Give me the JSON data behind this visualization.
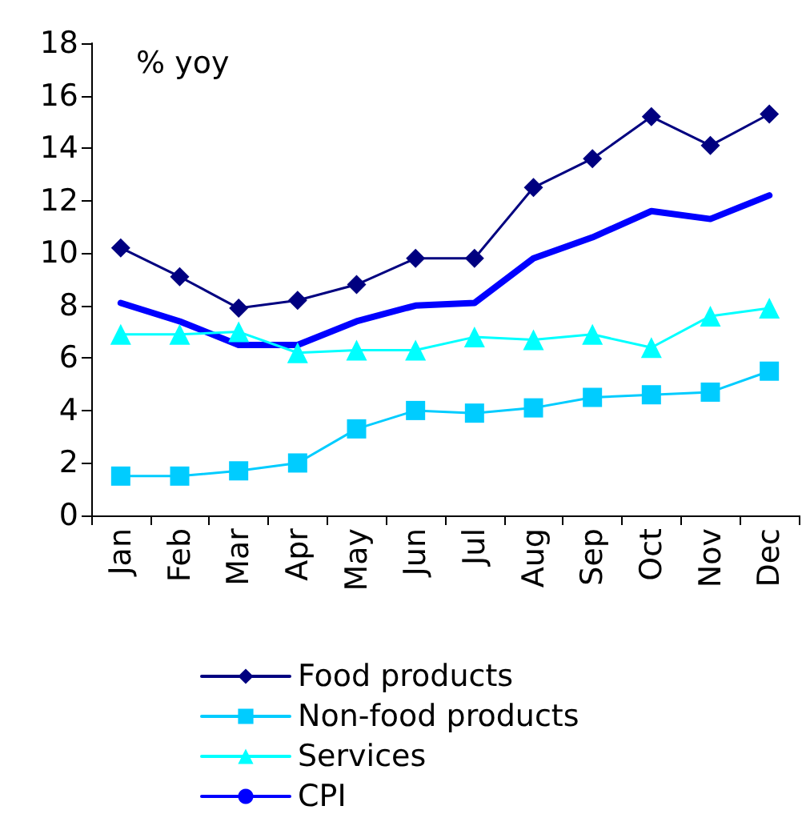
{
  "chart_data": {
    "type": "line",
    "ylabel": "% yoy",
    "categories": [
      "Jan",
      "Feb",
      "Mar",
      "Apr",
      "May",
      "Jun",
      "Jul",
      "Aug",
      "Sep",
      "Oct",
      "Nov",
      "Dec"
    ],
    "series": [
      {
        "name": "Food products",
        "color": "#000080",
        "marker": "diamond",
        "values": [
          10.2,
          9.1,
          7.9,
          8.2,
          8.8,
          9.8,
          9.8,
          12.5,
          13.6,
          15.2,
          14.1,
          15.3
        ]
      },
      {
        "name": "Non-food products",
        "color": "#00ccff",
        "marker": "square",
        "values": [
          1.5,
          1.5,
          1.7,
          2.0,
          3.3,
          4.0,
          3.9,
          4.1,
          4.5,
          4.6,
          4.7,
          5.5
        ]
      },
      {
        "name": "Services",
        "color": "#00ffff",
        "marker": "triangle",
        "values": [
          6.9,
          6.9,
          7.0,
          6.2,
          6.3,
          6.3,
          6.8,
          6.7,
          6.9,
          6.4,
          7.6,
          7.9
        ]
      },
      {
        "name": "CPI",
        "color": "#0000ff",
        "marker": "none",
        "values": [
          8.1,
          7.4,
          6.5,
          6.5,
          7.4,
          8.0,
          8.1,
          9.8,
          10.6,
          11.6,
          11.3,
          12.2
        ]
      }
    ],
    "ylim": [
      0,
      18
    ],
    "yticks": [
      0,
      2,
      4,
      6,
      8,
      10,
      12,
      14,
      16,
      18
    ],
    "grid": false,
    "legend": "bottom"
  }
}
